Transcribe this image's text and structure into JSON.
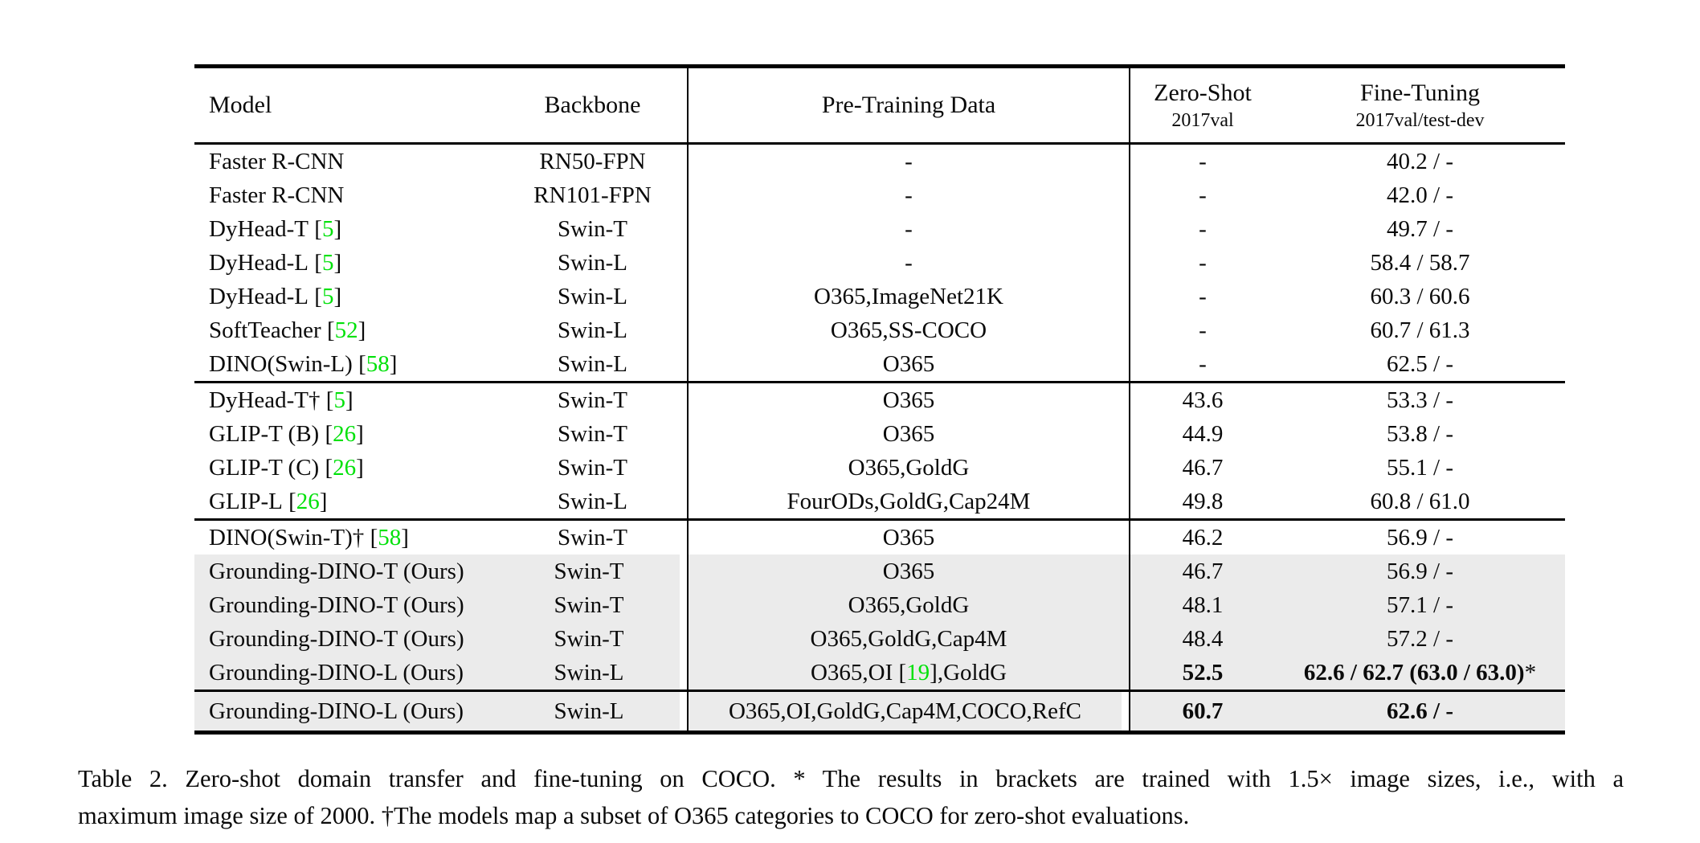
{
  "colors": {
    "citation_green": "#00e10a",
    "row_highlight": "#ebebeb",
    "text": "#0a0a0a"
  },
  "header": {
    "model": "Model",
    "backbone": "Backbone",
    "pretraining": "Pre-Training Data",
    "zeroshot_title": "Zero-Shot",
    "zeroshot_sub": "2017val",
    "finetuning_title": "Fine-Tuning",
    "finetuning_sub": "2017val/test-dev"
  },
  "sections": [
    {
      "rows": [
        {
          "model": "Faster R-CNN",
          "model_cite": "",
          "backbone": "RN50-FPN",
          "pre": "-",
          "pre_cite": "",
          "pre_after": "",
          "zs": "-",
          "ft": "40.2 / -",
          "ft_suffix": "",
          "highlight": false,
          "bold": false
        },
        {
          "model": "Faster R-CNN",
          "model_cite": "",
          "backbone": "RN101-FPN",
          "pre": "-",
          "pre_cite": "",
          "pre_after": "",
          "zs": "-",
          "ft": "42.0 / -",
          "ft_suffix": "",
          "highlight": false,
          "bold": false
        },
        {
          "model": "DyHead-T",
          "model_cite": "5",
          "backbone": "Swin-T",
          "pre": "-",
          "pre_cite": "",
          "pre_after": "",
          "zs": "-",
          "ft": "49.7 / -",
          "ft_suffix": "",
          "highlight": false,
          "bold": false
        },
        {
          "model": "DyHead-L",
          "model_cite": "5",
          "backbone": "Swin-L",
          "pre": "-",
          "pre_cite": "",
          "pre_after": "",
          "zs": "-",
          "ft": "58.4 / 58.7",
          "ft_suffix": "",
          "highlight": false,
          "bold": false
        },
        {
          "model": "DyHead-L",
          "model_cite": "5",
          "backbone": "Swin-L",
          "pre": "O365,ImageNet21K",
          "pre_cite": "",
          "pre_after": "",
          "zs": "-",
          "ft": "60.3 / 60.6",
          "ft_suffix": "",
          "highlight": false,
          "bold": false
        },
        {
          "model": "SoftTeacher",
          "model_cite": "52",
          "backbone": "Swin-L",
          "pre": "O365,SS-COCO",
          "pre_cite": "",
          "pre_after": "",
          "zs": "-",
          "ft": "60.7 / 61.3",
          "ft_suffix": "",
          "highlight": false,
          "bold": false
        },
        {
          "model": "DINO(Swin-L)",
          "model_cite": "58",
          "backbone": "Swin-L",
          "pre": "O365",
          "pre_cite": "",
          "pre_after": "",
          "zs": "-",
          "ft": "62.5 / -",
          "ft_suffix": "",
          "highlight": false,
          "bold": false
        }
      ]
    },
    {
      "rows": [
        {
          "model": "DyHead-T†",
          "model_cite": "5",
          "backbone": "Swin-T",
          "pre": "O365",
          "pre_cite": "",
          "pre_after": "",
          "zs": "43.6",
          "ft": "53.3 / -",
          "ft_suffix": "",
          "highlight": false,
          "bold": false
        },
        {
          "model": "GLIP-T (B)",
          "model_cite": "26",
          "backbone": "Swin-T",
          "pre": "O365",
          "pre_cite": "",
          "pre_after": "",
          "zs": "44.9",
          "ft": "53.8 / -",
          "ft_suffix": "",
          "highlight": false,
          "bold": false
        },
        {
          "model": "GLIP-T (C)",
          "model_cite": "26",
          "backbone": "Swin-T",
          "pre": "O365,GoldG",
          "pre_cite": "",
          "pre_after": "",
          "zs": "46.7",
          "ft": "55.1 / -",
          "ft_suffix": "",
          "highlight": false,
          "bold": false
        },
        {
          "model": "GLIP-L",
          "model_cite": "26",
          "backbone": "Swin-L",
          "pre": "FourODs,GoldG,Cap24M",
          "pre_cite": "",
          "pre_after": "",
          "zs": "49.8",
          "ft": "60.8 / 61.0",
          "ft_suffix": "",
          "highlight": false,
          "bold": false
        }
      ]
    },
    {
      "rows": [
        {
          "model": "DINO(Swin-T)†",
          "model_cite": "58",
          "backbone": "Swin-T",
          "pre": "O365",
          "pre_cite": "",
          "pre_after": "",
          "zs": "46.2",
          "ft": "56.9 / -",
          "ft_suffix": "",
          "highlight": false,
          "bold": false
        },
        {
          "model": "Grounding-DINO-T (Ours)",
          "model_cite": "",
          "backbone": "Swin-T",
          "pre": "O365",
          "pre_cite": "",
          "pre_after": "",
          "zs": "46.7",
          "ft": "56.9 / -",
          "ft_suffix": "",
          "highlight": true,
          "bold": false
        },
        {
          "model": "Grounding-DINO-T (Ours)",
          "model_cite": "",
          "backbone": "Swin-T",
          "pre": "O365,GoldG",
          "pre_cite": "",
          "pre_after": "",
          "zs": "48.1",
          "ft": "57.1 / -",
          "ft_suffix": "",
          "highlight": true,
          "bold": false
        },
        {
          "model": "Grounding-DINO-T (Ours)",
          "model_cite": "",
          "backbone": "Swin-T",
          "pre": "O365,GoldG,Cap4M",
          "pre_cite": "",
          "pre_after": "",
          "zs": "48.4",
          "ft": "57.2 / -",
          "ft_suffix": "",
          "highlight": true,
          "bold": false
        },
        {
          "model": "Grounding-DINO-L (Ours)",
          "model_cite": "",
          "backbone": "Swin-L",
          "pre": "O365,OI",
          "pre_cite": "19",
          "pre_after": ",GoldG",
          "zs": "52.5",
          "ft": "62.6 / 62.7 (63.0 / 63.0)",
          "ft_suffix": "*",
          "highlight": true,
          "bold": true
        }
      ]
    },
    {
      "rows": [
        {
          "model": "Grounding-DINO-L (Ours)",
          "model_cite": "",
          "backbone": "Swin-L",
          "pre": "O365,OI,GoldG,Cap4M,COCO,RefC",
          "pre_cite": "",
          "pre_after": "",
          "zs": "60.7",
          "ft": "62.6 / -",
          "ft_suffix": "",
          "highlight": true,
          "bold": true
        }
      ]
    }
  ],
  "caption": {
    "line1": "Table 2.  Zero-shot domain transfer and fine-tuning on COCO. * The results in brackets are trained with 1.5× image sizes, i.e., with a",
    "line2": "maximum image size of 2000. †The models map a subset of O365 categories to COCO for zero-shot evaluations."
  }
}
